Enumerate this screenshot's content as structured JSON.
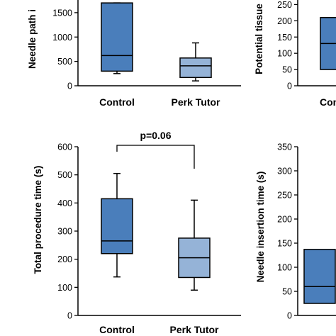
{
  "colors": {
    "control": "#4A7EBB",
    "perk_tutor": "#95B3D7",
    "stroke": "#000000"
  },
  "chart_data": [
    {
      "type": "box",
      "panel": "top-left",
      "ylabel": "Needle path i",
      "ylim": [
        0,
        1600
      ],
      "yticks": [
        0,
        500,
        1000,
        1500
      ],
      "categories": [
        "Control",
        "Perk Tutor"
      ],
      "boxes": [
        {
          "name": "Control",
          "min": 250,
          "q1": 300,
          "median": 620,
          "q3": 1700,
          "max": 1700
        },
        {
          "name": "Perk Tutor",
          "min": 100,
          "q1": 170,
          "median": 410,
          "q3": 570,
          "max": 880
        }
      ],
      "annotation": null
    },
    {
      "type": "box",
      "panel": "top-right",
      "ylabel": "Potential tissue",
      "ylim": [
        0,
        240
      ],
      "yticks": [
        0,
        50,
        100,
        150,
        200,
        250
      ],
      "categories": [
        "Con"
      ],
      "boxes": [
        {
          "name": "Con",
          "q1": 50,
          "median": 130,
          "q3": 210
        }
      ],
      "annotation": null
    },
    {
      "type": "box",
      "panel": "bottom-left",
      "ylabel": "Total procedure time (s)",
      "ylim": [
        0,
        600
      ],
      "yticks": [
        0,
        100,
        200,
        300,
        400,
        500,
        600
      ],
      "categories": [
        "Control",
        "Perk Tutor"
      ],
      "boxes": [
        {
          "name": "Control",
          "min": 137,
          "q1": 220,
          "median": 265,
          "q3": 415,
          "max": 505
        },
        {
          "name": "Perk Tutor",
          "min": 90,
          "q1": 135,
          "median": 205,
          "q3": 275,
          "max": 410
        }
      ],
      "annotation": "p=0.06"
    },
    {
      "type": "box",
      "panel": "bottom-right",
      "ylabel": "Needle insertion time (s)",
      "ylim": [
        0,
        350
      ],
      "yticks": [
        0,
        50,
        100,
        150,
        200,
        250,
        300,
        350
      ],
      "categories": [],
      "boxes": [
        {
          "name": "",
          "q1": 25,
          "median": 60,
          "q3": 137
        }
      ],
      "annotation": null
    }
  ]
}
